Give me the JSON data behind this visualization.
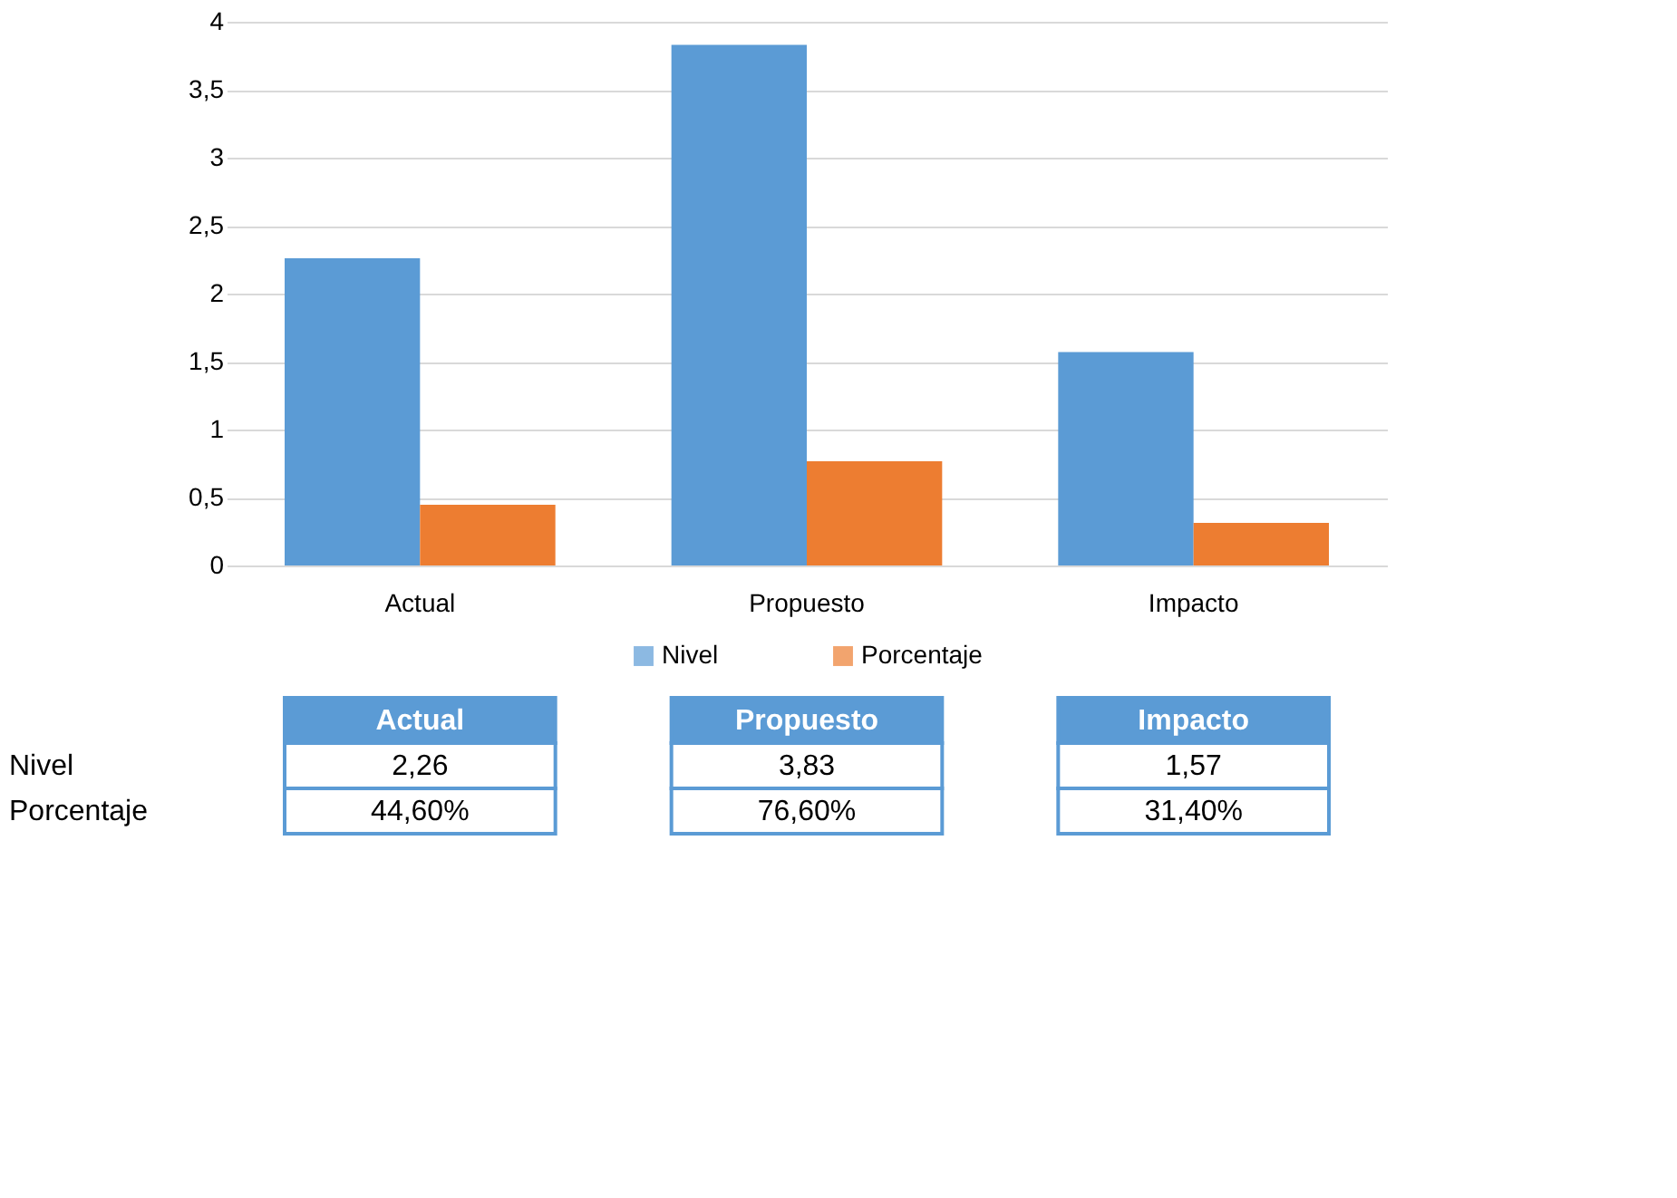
{
  "chart_data": {
    "type": "bar",
    "categories": [
      "Actual",
      "Propuesto",
      "Impacto"
    ],
    "series": [
      {
        "name": "Nivel",
        "color": "#5b9bd5",
        "values": [
          2.26,
          3.83,
          1.57
        ],
        "value_labels": [
          "2,26",
          "3,83",
          "1,57"
        ]
      },
      {
        "name": "Porcentaje",
        "color": "#ed7d31",
        "values": [
          0.446,
          0.766,
          0.314
        ],
        "value_labels": [
          "44,60%",
          "76,60%",
          "31,40%"
        ]
      }
    ],
    "ylim": [
      0,
      4
    ],
    "yticks": [
      0,
      {
        "value": 0.5,
        "label": "0,5"
      },
      1,
      {
        "value": 1.5,
        "label": "1,5"
      },
      2,
      {
        "value": 2.5,
        "label": "2,5"
      },
      3,
      {
        "value": 3.5,
        "label": "3,5"
      },
      4
    ],
    "grid": "y",
    "legend": "bottom"
  }
}
